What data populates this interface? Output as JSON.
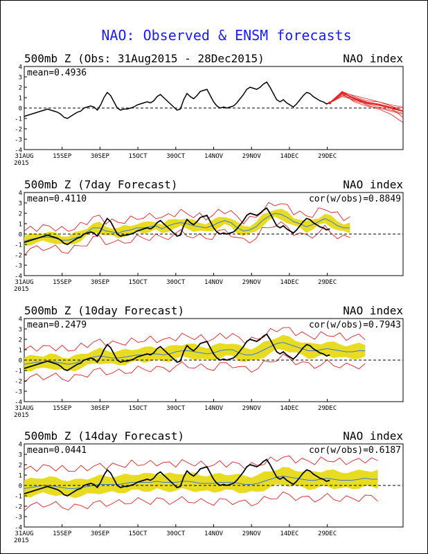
{
  "main_title": "NAO: Observed & ENSM forecasts",
  "x_ticks": [
    "31AUG",
    "15SEP",
    "30SEP",
    "15OCT",
    "30OCT",
    "14NOV",
    "29NOV",
    "14DEC",
    "29DEC"
  ],
  "x_year": "2015",
  "y_ticks": [
    "4",
    "3",
    "2",
    "1",
    "0",
    "-1",
    "-2",
    "-3",
    "-4"
  ],
  "colors": {
    "title": "#1a1aff",
    "observed": "#000000",
    "ensemble": "#e62020",
    "spread": "#e8dc22",
    "mean_line": "#3c78dc",
    "text": "#000000"
  },
  "chart_data": [
    {
      "type": "line",
      "panel_title": "500mb Z (Obs: 31Aug2015 - 28Dec2015)",
      "right_label": "NAO index",
      "mean_label": "mean=0.4936",
      "cor_label": "",
      "x_start": "2015-08-31",
      "ylim": [
        -4,
        4
      ],
      "observed": [
        -0.8,
        -0.7,
        -0.6,
        -0.5,
        -0.4,
        -0.3,
        -0.2,
        -0.1,
        -0.2,
        -0.3,
        -0.4,
        -0.6,
        -0.9,
        -1.0,
        -0.8,
        -0.6,
        -0.4,
        -0.3,
        0.0,
        0.1,
        0.2,
        0.1,
        -0.2,
        0.3,
        1.0,
        1.5,
        1.2,
        0.6,
        0.0,
        -0.2,
        -0.1,
        -0.1,
        0.0,
        0.1,
        0.3,
        0.4,
        0.5,
        0.6,
        0.5,
        0.7,
        1.1,
        1.3,
        1.0,
        0.7,
        0.4,
        0.1,
        -0.2,
        -0.1,
        0.8,
        1.4,
        1.1,
        0.9,
        1.2,
        1.6,
        1.7,
        1.8,
        1.2,
        0.6,
        0.2,
        0.0,
        0.1,
        0.0,
        0.1,
        0.2,
        0.5,
        0.9,
        1.3,
        1.8,
        2.0,
        1.9,
        1.8,
        2.0,
        2.3,
        2.5,
        2.0,
        1.4,
        0.8,
        0.6,
        0.8,
        0.5,
        0.3,
        0.1,
        0.4,
        0.8,
        1.2,
        1.5,
        1.4,
        1.1,
        0.9,
        0.7,
        0.6,
        0.4,
        0.5
      ],
      "forecast_start_day": 121,
      "forecast_members": [
        [
          0.5,
          1.6,
          1.1,
          0.7,
          0.6,
          0.2,
          -0.3
        ],
        [
          0.5,
          1.4,
          1.0,
          0.6,
          0.4,
          0.1,
          0.0
        ],
        [
          0.5,
          1.3,
          0.7,
          0.4,
          0.1,
          -0.2,
          -0.5
        ],
        [
          0.5,
          1.2,
          0.9,
          0.3,
          -0.1,
          -0.6,
          -1.4
        ],
        [
          0.5,
          1.5,
          1.2,
          0.9,
          0.6,
          0.3,
          0.1
        ],
        [
          0.5,
          1.1,
          0.8,
          0.5,
          0.3,
          0.0,
          -0.9
        ],
        [
          0.5,
          1.4,
          0.6,
          0.2,
          0.0,
          -0.3,
          -0.6
        ]
      ],
      "forecast_mean": [
        0.5,
        1.5,
        0.9,
        0.5,
        0.3,
        0.0,
        -0.3
      ]
    },
    {
      "type": "line",
      "panel_title": "500mb Z (7day Forecast)",
      "right_label": "NAO index",
      "mean_label": "mean=0.4110",
      "cor_label": "cor(w/obs)=0.8849",
      "x_start": "2015-08-31",
      "ylim": [
        -4,
        4
      ],
      "observed": [
        -0.8,
        -0.7,
        -0.6,
        -0.5,
        -0.4,
        -0.3,
        -0.2,
        -0.1,
        -0.2,
        -0.3,
        -0.4,
        -0.6,
        -0.9,
        -1.0,
        -0.8,
        -0.6,
        -0.4,
        -0.3,
        0.0,
        0.1,
        0.2,
        0.1,
        -0.2,
        0.3,
        1.0,
        1.5,
        1.2,
        0.6,
        0.0,
        -0.2,
        -0.1,
        -0.1,
        0.0,
        0.1,
        0.3,
        0.4,
        0.5,
        0.6,
        0.5,
        0.7,
        1.1,
        1.3,
        1.0,
        0.7,
        0.4,
        0.1,
        -0.2,
        -0.1,
        0.8,
        1.4,
        1.1,
        0.9,
        1.2,
        1.6,
        1.7,
        1.8,
        1.2,
        0.6,
        0.2,
        0.0,
        0.1,
        0.0,
        0.1,
        0.2,
        0.5,
        0.9,
        1.3,
        1.8,
        2.0,
        1.9,
        1.8,
        2.0,
        2.3,
        2.5,
        2.0,
        1.4,
        0.8,
        0.6,
        0.8,
        0.5,
        0.3,
        0.1,
        0.4,
        0.8,
        1.2,
        1.5,
        1.4,
        1.1,
        0.9,
        0.7,
        0.6,
        0.4,
        0.5
      ],
      "obs_end_day": 121,
      "ens_mean": [
        -0.7,
        -0.5,
        -0.4,
        -0.3,
        -0.3,
        -0.4,
        -0.6,
        -0.6,
        -0.4,
        -0.2,
        0.2,
        0.6,
        0.6,
        0.3,
        0.2,
        0.1,
        0.3,
        0.4,
        0.6,
        0.6,
        0.7,
        0.8,
        0.5,
        0.8,
        1.0,
        1.1,
        1.0,
        0.8,
        0.7,
        0.6,
        0.8,
        1.1,
        1.3,
        1.1,
        0.6,
        0.3,
        0.4,
        0.7,
        1.3,
        1.7,
        2.0,
        1.9,
        1.6,
        1.2,
        1.0,
        0.7,
        0.9,
        1.2,
        1.5,
        1.2,
        0.8,
        0.6,
        0.6
      ],
      "spread_halfwidth": 0.45,
      "outer_halfwidth": 1.0,
      "ens_end_day": 129
    },
    {
      "type": "line",
      "panel_title": "500mb Z (10day Forecast)",
      "right_label": "NAO index",
      "mean_label": "mean=0.2479",
      "cor_label": "cor(w/obs)=0.7943",
      "x_start": "2015-08-31",
      "ylim": [
        -4,
        4
      ],
      "observed": [
        -0.8,
        -0.7,
        -0.6,
        -0.5,
        -0.4,
        -0.3,
        -0.2,
        -0.1,
        -0.2,
        -0.3,
        -0.4,
        -0.6,
        -0.9,
        -1.0,
        -0.8,
        -0.6,
        -0.4,
        -0.3,
        0.0,
        0.1,
        0.2,
        0.1,
        -0.2,
        0.3,
        1.0,
        1.5,
        1.2,
        0.6,
        0.0,
        -0.2,
        -0.1,
        -0.1,
        0.0,
        0.1,
        0.3,
        0.4,
        0.5,
        0.6,
        0.5,
        0.7,
        1.1,
        1.3,
        1.0,
        0.7,
        0.4,
        0.1,
        -0.2,
        -0.1,
        0.8,
        1.4,
        1.1,
        0.9,
        1.2,
        1.6,
        1.7,
        1.8,
        1.2,
        0.6,
        0.2,
        0.0,
        0.1,
        0.0,
        0.1,
        0.2,
        0.5,
        0.9,
        1.3,
        1.8,
        2.0,
        1.9,
        1.8,
        2.0,
        2.3,
        2.5,
        2.0,
        1.4,
        0.8,
        0.6,
        0.8,
        0.5,
        0.3,
        0.1,
        0.4,
        0.8,
        1.2,
        1.5,
        1.4,
        1.1,
        0.9,
        0.7,
        0.6,
        0.4,
        0.5
      ],
      "obs_end_day": 121,
      "ens_mean": [
        -0.4,
        -0.3,
        -0.2,
        -0.2,
        -0.1,
        -0.2,
        -0.3,
        -0.4,
        -0.3,
        -0.1,
        0.1,
        0.3,
        0.4,
        0.3,
        0.2,
        0.2,
        0.3,
        0.4,
        0.5,
        0.5,
        0.6,
        0.6,
        0.5,
        0.6,
        0.8,
        0.9,
        0.9,
        0.8,
        0.7,
        0.6,
        0.7,
        0.9,
        1.0,
        1.0,
        0.7,
        0.5,
        0.5,
        0.7,
        1.0,
        1.3,
        1.6,
        1.7,
        1.5,
        1.3,
        1.1,
        0.9,
        0.9,
        1.0,
        1.1,
        1.0,
        0.9,
        0.8,
        0.8,
        0.9,
        0.9
      ],
      "spread_halfwidth": 0.65,
      "outer_halfwidth": 1.4,
      "ens_end_day": 135
    },
    {
      "type": "line",
      "panel_title": "500mb Z (14day Forecast)",
      "right_label": "NAO index",
      "mean_label": "mean=0.0441",
      "cor_label": "cor(w/obs)=0.6187",
      "x_start": "2015-08-31",
      "ylim": [
        -4,
        4
      ],
      "observed": [
        -0.8,
        -0.7,
        -0.6,
        -0.5,
        -0.4,
        -0.3,
        -0.2,
        -0.1,
        -0.2,
        -0.3,
        -0.4,
        -0.6,
        -0.9,
        -1.0,
        -0.8,
        -0.6,
        -0.4,
        -0.3,
        0.0,
        0.1,
        0.2,
        0.1,
        -0.2,
        0.3,
        1.0,
        1.5,
        1.2,
        0.6,
        0.0,
        -0.2,
        -0.1,
        -0.1,
        0.0,
        0.1,
        0.3,
        0.4,
        0.5,
        0.6,
        0.5,
        0.7,
        1.1,
        1.3,
        1.0,
        0.7,
        0.4,
        0.1,
        -0.2,
        -0.1,
        0.8,
        1.4,
        1.1,
        0.9,
        1.2,
        1.6,
        1.7,
        1.8,
        1.2,
        0.6,
        0.2,
        0.0,
        0.1,
        0.0,
        0.1,
        0.2,
        0.5,
        0.9,
        1.3,
        1.8,
        2.0,
        1.9,
        1.8,
        2.0,
        2.3,
        2.5,
        2.0,
        1.4,
        0.8,
        0.6,
        0.8,
        0.5,
        0.3,
        0.1,
        0.4,
        0.8,
        1.2,
        1.5,
        1.4,
        1.1,
        0.9,
        0.7,
        0.6,
        0.4,
        0.5
      ],
      "obs_end_day": 121,
      "ens_mean": [
        -0.3,
        -0.2,
        -0.1,
        0.0,
        0.0,
        -0.1,
        -0.2,
        -0.3,
        -0.3,
        -0.2,
        -0.1,
        0.0,
        0.1,
        0.1,
        0.1,
        0.1,
        0.2,
        0.3,
        0.3,
        0.3,
        0.3,
        0.4,
        0.3,
        0.3,
        0.3,
        0.4,
        0.4,
        0.3,
        0.2,
        0.2,
        0.2,
        0.3,
        0.3,
        0.3,
        0.2,
        0.1,
        0.1,
        0.2,
        0.4,
        0.6,
        0.8,
        0.9,
        0.8,
        0.7,
        0.6,
        0.5,
        0.5,
        0.6,
        0.7,
        0.6,
        0.5,
        0.5,
        0.5,
        0.6,
        0.7,
        0.6,
        0.6
      ],
      "spread_halfwidth": 0.8,
      "outer_halfwidth": 1.8,
      "ens_end_day": 140
    }
  ]
}
